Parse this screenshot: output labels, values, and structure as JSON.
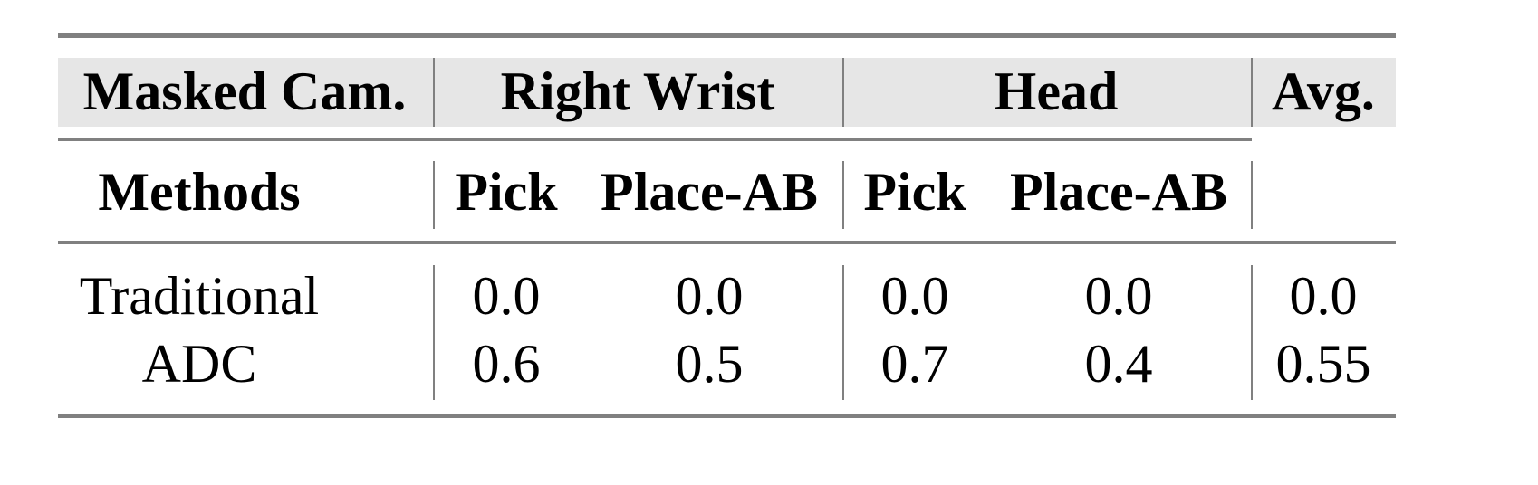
{
  "table": {
    "header_row1": {
      "masked_cam": "Masked Cam.",
      "group1": "Right Wrist",
      "group2": "Head",
      "avg": "Avg."
    },
    "header_row2": {
      "methods": "Methods",
      "cols": [
        "Pick",
        "Place-AB",
        "Pick",
        "Place-AB"
      ]
    },
    "rows": [
      {
        "method": "Traditional",
        "values": [
          "0.0",
          "0.0",
          "0.0",
          "0.0",
          "0.0"
        ]
      },
      {
        "method": "ADC",
        "values": [
          "0.6",
          "0.5",
          "0.7",
          "0.4",
          "0.55"
        ]
      }
    ],
    "colors": {
      "rule": "#808080",
      "header_band": "#e6e6e6"
    }
  }
}
